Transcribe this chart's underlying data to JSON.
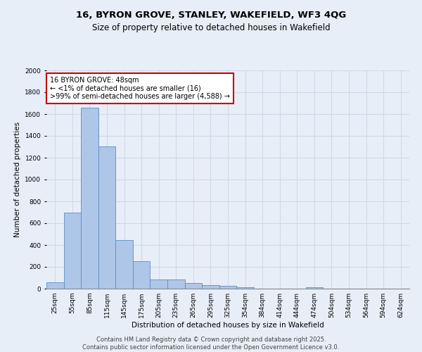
{
  "title_line1": "16, BYRON GROVE, STANLEY, WAKEFIELD, WF3 4QG",
  "title_line2": "Size of property relative to detached houses in Wakefield",
  "xlabel": "Distribution of detached houses by size in Wakefield",
  "ylabel": "Number of detached properties",
  "categories": [
    "25sqm",
    "55sqm",
    "85sqm",
    "115sqm",
    "145sqm",
    "175sqm",
    "205sqm",
    "235sqm",
    "265sqm",
    "295sqm",
    "325sqm",
    "354sqm",
    "384sqm",
    "414sqm",
    "444sqm",
    "474sqm",
    "504sqm",
    "534sqm",
    "564sqm",
    "594sqm",
    "624sqm"
  ],
  "values": [
    60,
    700,
    1660,
    1305,
    445,
    250,
    85,
    85,
    50,
    35,
    25,
    15,
    0,
    0,
    0,
    10,
    0,
    0,
    0,
    0,
    0
  ],
  "bar_color": "#aec6e8",
  "bar_edge_color": "#5b8ec4",
  "annotation_text": "16 BYRON GROVE: 48sqm\n← <1% of detached houses are smaller (16)\n>99% of semi-detached houses are larger (4,588) →",
  "annotation_box_color": "#ffffff",
  "annotation_box_edge": "#cc0000",
  "ylim": [
    0,
    2000
  ],
  "yticks": [
    0,
    200,
    400,
    600,
    800,
    1000,
    1200,
    1400,
    1600,
    1800,
    2000
  ],
  "grid_color": "#d0d8e8",
  "background_color": "#e8eef8",
  "footer_line1": "Contains HM Land Registry data © Crown copyright and database right 2025.",
  "footer_line2": "Contains public sector information licensed under the Open Government Licence v3.0.",
  "title_fontsize": 9.5,
  "subtitle_fontsize": 8.5,
  "axis_label_fontsize": 7.5,
  "tick_fontsize": 6.5,
  "annotation_fontsize": 7,
  "footer_fontsize": 6
}
